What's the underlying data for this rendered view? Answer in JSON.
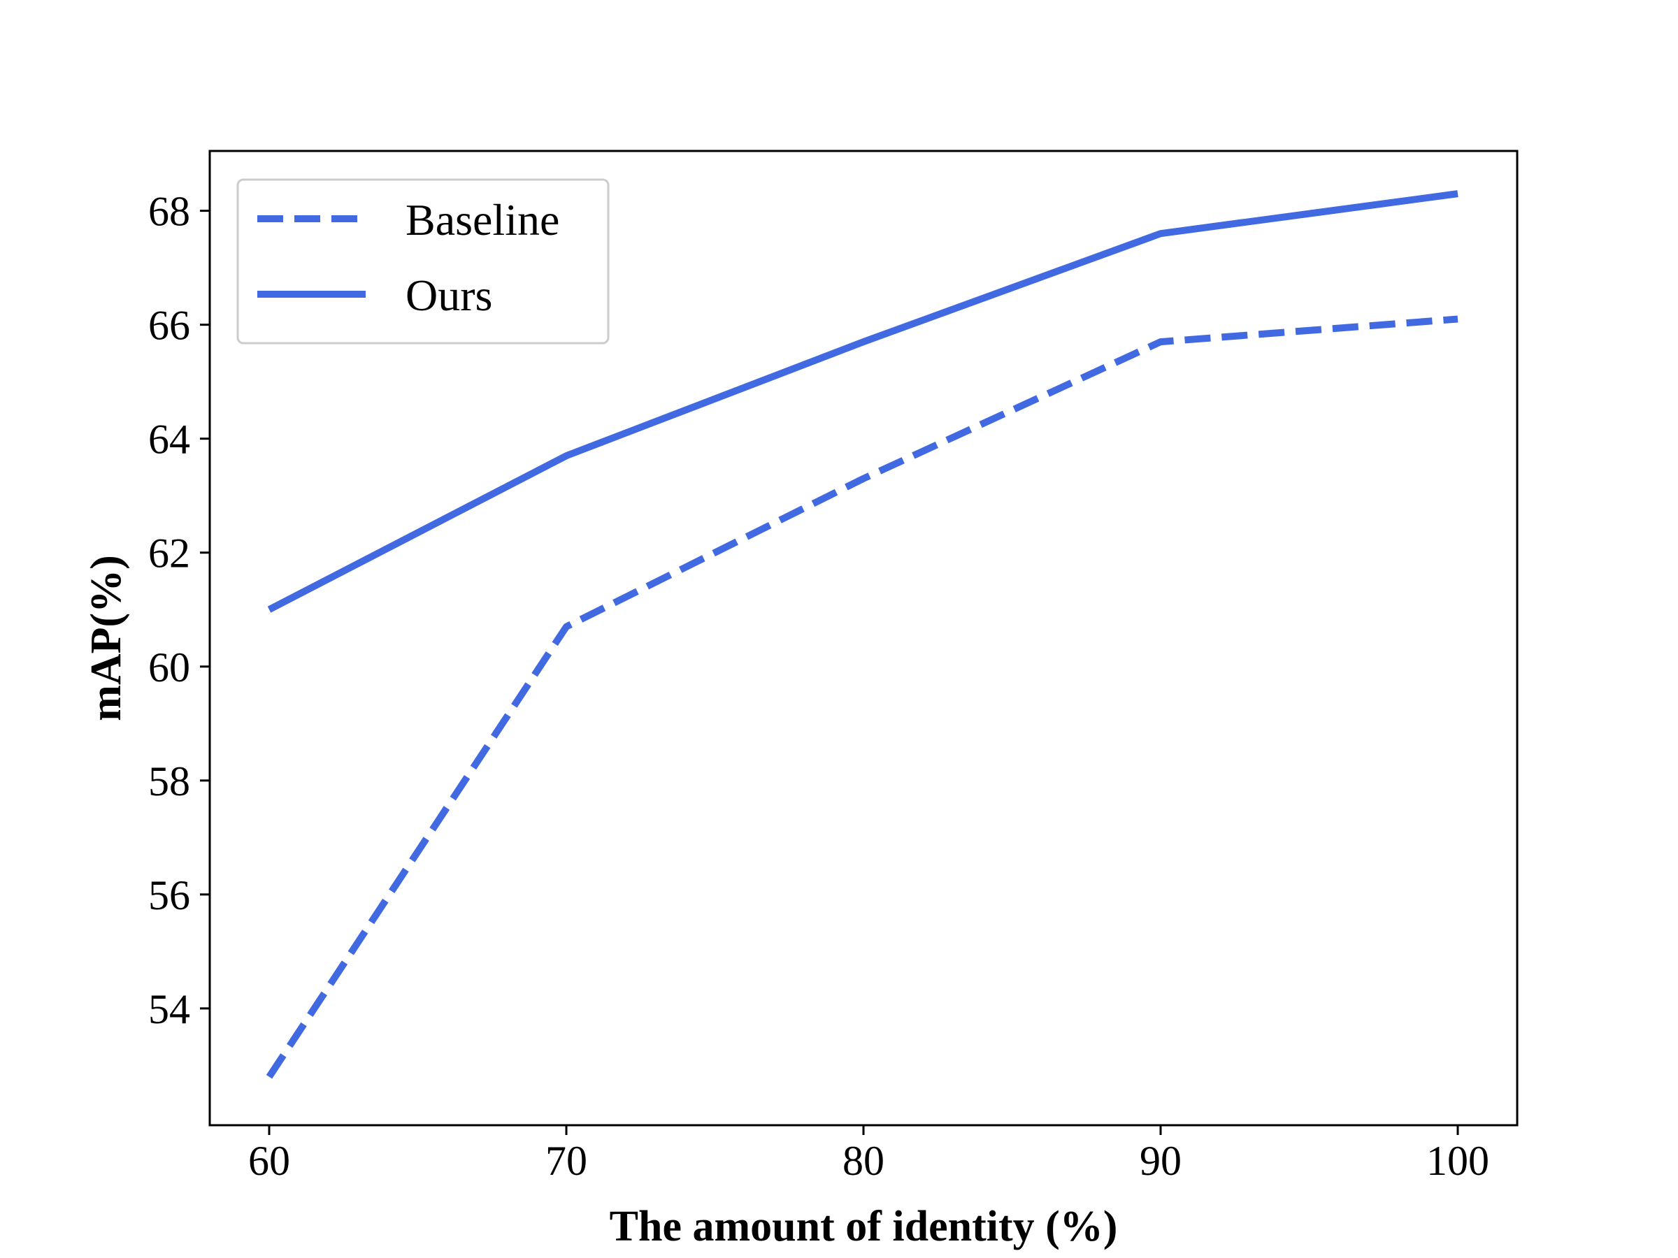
{
  "chart_data": {
    "type": "line",
    "title": "",
    "xlabel": "The amount of identity (%)",
    "ylabel": "mAP(%)",
    "x": [
      60,
      70,
      80,
      90,
      100
    ],
    "x_ticks": [
      "60",
      "70",
      "80",
      "90",
      "100"
    ],
    "y_ticks": [
      "54",
      "56",
      "58",
      "60",
      "62",
      "64",
      "66",
      "68"
    ],
    "xlim": [
      58,
      102
    ],
    "ylim": [
      51.95,
      69.05
    ],
    "grid": false,
    "legend_position": "top-left",
    "series": [
      {
        "name": "Baseline",
        "style": "dashed",
        "color": "#4169E1",
        "values": [
          52.8,
          60.7,
          63.3,
          65.7,
          66.1
        ]
      },
      {
        "name": "Ours",
        "style": "solid",
        "color": "#4169E1",
        "values": [
          61.0,
          63.7,
          65.7,
          67.6,
          68.3
        ]
      }
    ]
  }
}
